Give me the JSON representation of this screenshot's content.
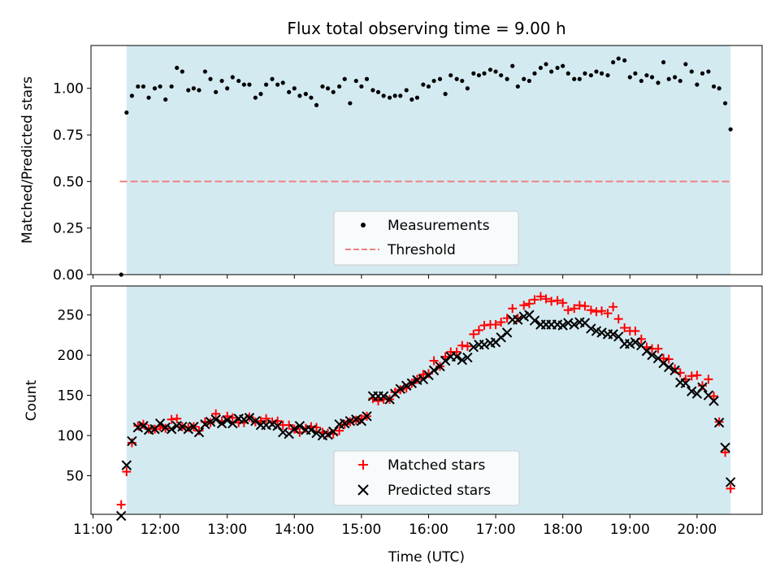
{
  "figure": {
    "title": "Flux total observing time = 9.00 h",
    "xlabel": "Time (UTC)"
  },
  "colors": {
    "band": "#d4eaf1",
    "measurement": "#000000",
    "threshold": "#f08080",
    "matched": "#ff0000",
    "predicted": "#000000"
  },
  "chart_data": [
    {
      "type": "scatter",
      "ylabel": "Matched/Predicted stars",
      "x_unit": "hours UTC",
      "xlim": [
        10.97,
        20.97
      ],
      "ylim": [
        0.0,
        1.23
      ],
      "shaded_band": [
        11.5,
        20.5
      ],
      "threshold": 0.5,
      "threshold_span": [
        11.4,
        20.5
      ],
      "xticks": [
        11,
        12,
        13,
        14,
        15,
        16,
        17,
        18,
        19,
        20
      ],
      "xtick_labels": [
        "11:00",
        "12:00",
        "13:00",
        "14:00",
        "15:00",
        "16:00",
        "17:00",
        "18:00",
        "19:00",
        "20:00"
      ],
      "yticks": [
        0.0,
        0.25,
        0.5,
        0.75,
        1.0
      ],
      "ytick_labels": [
        "0.00",
        "0.25",
        "0.50",
        "0.75",
        "1.00"
      ],
      "legend": {
        "placement": "lower-center",
        "entries": [
          "Measurements",
          "Threshold"
        ]
      },
      "series": [
        {
          "name": "Measurements",
          "x": [
            11.42,
            11.5,
            11.58,
            11.67,
            11.75,
            11.83,
            11.92,
            12.0,
            12.08,
            12.17,
            12.25,
            12.33,
            12.42,
            12.5,
            12.58,
            12.67,
            12.75,
            12.83,
            12.92,
            13.0,
            13.08,
            13.17,
            13.25,
            13.33,
            13.42,
            13.5,
            13.58,
            13.67,
            13.75,
            13.83,
            13.92,
            14.0,
            14.08,
            14.17,
            14.25,
            14.33,
            14.42,
            14.5,
            14.58,
            14.67,
            14.75,
            14.83,
            14.92,
            15.0,
            15.08,
            15.17,
            15.25,
            15.33,
            15.42,
            15.5,
            15.58,
            15.67,
            15.75,
            15.83,
            15.92,
            16.0,
            16.08,
            16.17,
            16.25,
            16.33,
            16.42,
            16.5,
            16.58,
            16.67,
            16.75,
            16.83,
            16.92,
            17.0,
            17.08,
            17.17,
            17.25,
            17.33,
            17.42,
            17.5,
            17.58,
            17.67,
            17.75,
            17.83,
            17.92,
            18.0,
            18.08,
            18.17,
            18.25,
            18.33,
            18.42,
            18.5,
            18.58,
            18.67,
            18.75,
            18.83,
            18.92,
            19.0,
            19.08,
            19.17,
            19.25,
            19.33,
            19.42,
            19.5,
            19.58,
            19.67,
            19.75,
            19.83,
            19.92,
            20.0,
            20.08,
            20.17,
            20.25,
            20.33,
            20.42,
            20.5
          ],
          "y": [
            0.0,
            0.87,
            0.96,
            1.01,
            1.01,
            0.95,
            1.0,
            1.01,
            0.94,
            1.01,
            1.11,
            1.09,
            0.99,
            1.0,
            0.99,
            1.09,
            1.05,
            0.98,
            1.04,
            1.0,
            1.06,
            1.04,
            1.02,
            1.02,
            0.95,
            0.97,
            1.02,
            1.05,
            1.02,
            1.03,
            0.98,
            1.0,
            0.96,
            0.97,
            0.95,
            0.91,
            1.01,
            1.0,
            0.98,
            1.01,
            1.05,
            0.92,
            1.04,
            1.01,
            1.05,
            0.99,
            0.98,
            0.96,
            0.95,
            0.96,
            0.96,
            0.99,
            0.94,
            0.95,
            1.02,
            1.01,
            1.04,
            1.05,
            0.97,
            1.07,
            1.05,
            1.04,
            1.0,
            1.08,
            1.07,
            1.08,
            1.1,
            1.09,
            1.07,
            1.05,
            1.12,
            1.01,
            1.05,
            1.04,
            1.08,
            1.11,
            1.13,
            1.09,
            1.11,
            1.12,
            1.08,
            1.05,
            1.05,
            1.08,
            1.07,
            1.09,
            1.08,
            1.07,
            1.14,
            1.16,
            1.15,
            1.06,
            1.08,
            1.04,
            1.07,
            1.06,
            1.03,
            1.14,
            1.05,
            1.06,
            1.04,
            1.13,
            1.09,
            1.02,
            1.08,
            1.09,
            1.01,
            1.0,
            0.92,
            0.78
          ]
        },
        {
          "name": "Threshold",
          "style": "dashed",
          "value": 0.5
        }
      ]
    },
    {
      "type": "scatter",
      "ylabel": "Count",
      "x_unit": "hours UTC",
      "xlim": [
        10.97,
        20.97
      ],
      "ylim": [
        2,
        286
      ],
      "shaded_band": [
        11.5,
        20.5
      ],
      "xticks": [
        11,
        12,
        13,
        14,
        15,
        16,
        17,
        18,
        19,
        20
      ],
      "xtick_labels": [
        "11:00",
        "12:00",
        "13:00",
        "14:00",
        "15:00",
        "16:00",
        "17:00",
        "18:00",
        "19:00",
        "20:00"
      ],
      "yticks": [
        50,
        100,
        150,
        200,
        250
      ],
      "ytick_labels": [
        "50",
        "100",
        "150",
        "200",
        "250"
      ],
      "legend": {
        "placement": "lower-center",
        "entries": [
          "Matched stars",
          "Predicted stars"
        ]
      },
      "x": [
        11.42,
        11.5,
        11.58,
        11.67,
        11.75,
        11.83,
        11.92,
        12.0,
        12.08,
        12.17,
        12.25,
        12.33,
        12.42,
        12.5,
        12.58,
        12.67,
        12.75,
        12.83,
        12.92,
        13.0,
        13.08,
        13.17,
        13.25,
        13.33,
        13.42,
        13.5,
        13.58,
        13.67,
        13.75,
        13.83,
        13.92,
        14.0,
        14.08,
        14.17,
        14.25,
        14.33,
        14.42,
        14.5,
        14.58,
        14.67,
        14.75,
        14.83,
        14.92,
        15.0,
        15.08,
        15.17,
        15.25,
        15.33,
        15.42,
        15.5,
        15.58,
        15.67,
        15.75,
        15.83,
        15.92,
        16.0,
        16.08,
        16.17,
        16.25,
        16.33,
        16.42,
        16.5,
        16.58,
        16.67,
        16.75,
        16.83,
        16.92,
        17.0,
        17.08,
        17.17,
        17.25,
        17.33,
        17.42,
        17.5,
        17.58,
        17.67,
        17.75,
        17.83,
        17.92,
        18.0,
        18.08,
        18.17,
        18.25,
        18.33,
        18.42,
        18.5,
        18.58,
        18.67,
        18.75,
        18.83,
        18.92,
        19.0,
        19.08,
        19.17,
        19.25,
        19.33,
        19.42,
        19.5,
        19.58,
        19.67,
        19.75,
        19.83,
        19.92,
        20.0,
        20.08,
        20.17,
        20.25,
        20.33,
        20.42,
        20.5
      ],
      "series": [
        {
          "name": "Matched stars",
          "marker": "plus",
          "y": [
            14,
            55,
            91,
            112,
            114,
            108,
            108,
            111,
            109,
            120,
            121,
            111,
            110,
            111,
            106,
            117,
            116,
            127,
            118,
            124,
            122,
            116,
            116,
            123,
            117,
            118,
            121,
            117,
            118,
            113,
            113,
            108,
            104,
            109,
            111,
            110,
            104,
            103,
            102,
            106,
            114,
            117,
            119,
            121,
            124,
            146,
            143,
            145,
            145,
            154,
            157,
            159,
            165,
            170,
            176,
            177,
            193,
            186,
            198,
            204,
            204,
            212,
            211,
            226,
            231,
            237,
            238,
            238,
            241,
            246,
            258,
            246,
            262,
            264,
            269,
            273,
            270,
            267,
            268,
            265,
            256,
            258,
            262,
            261,
            256,
            254,
            255,
            252,
            260,
            245,
            234,
            230,
            230,
            220,
            210,
            208,
            208,
            196,
            195,
            183,
            178,
            170,
            174,
            175,
            162,
            170,
            149,
            117,
            79,
            34
          ]
        },
        {
          "name": "Predicted stars",
          "marker": "x",
          "y": [
            0,
            63,
            93,
            110,
            112,
            107,
            108,
            115,
            110,
            108,
            112,
            111,
            108,
            111,
            104,
            114,
            117,
            120,
            115,
            119,
            115,
            121,
            120,
            122,
            118,
            113,
            113,
            114,
            112,
            104,
            102,
            108,
            112,
            107,
            107,
            103,
            100,
            101,
            105,
            114,
            115,
            118,
            120,
            118,
            124,
            149,
            149,
            149,
            145,
            152,
            158,
            162,
            165,
            169,
            170,
            175,
            181,
            186,
            193,
            198,
            198,
            194,
            197,
            210,
            213,
            213,
            215,
            216,
            222,
            228,
            244,
            244,
            248,
            250,
            243,
            238,
            238,
            238,
            238,
            237,
            240,
            238,
            241,
            240,
            233,
            230,
            228,
            226,
            226,
            223,
            214,
            214,
            216,
            212,
            205,
            200,
            196,
            190,
            185,
            181,
            166,
            165,
            155,
            152,
            160,
            150,
            143,
            116,
            85,
            42
          ]
        }
      ]
    }
  ]
}
